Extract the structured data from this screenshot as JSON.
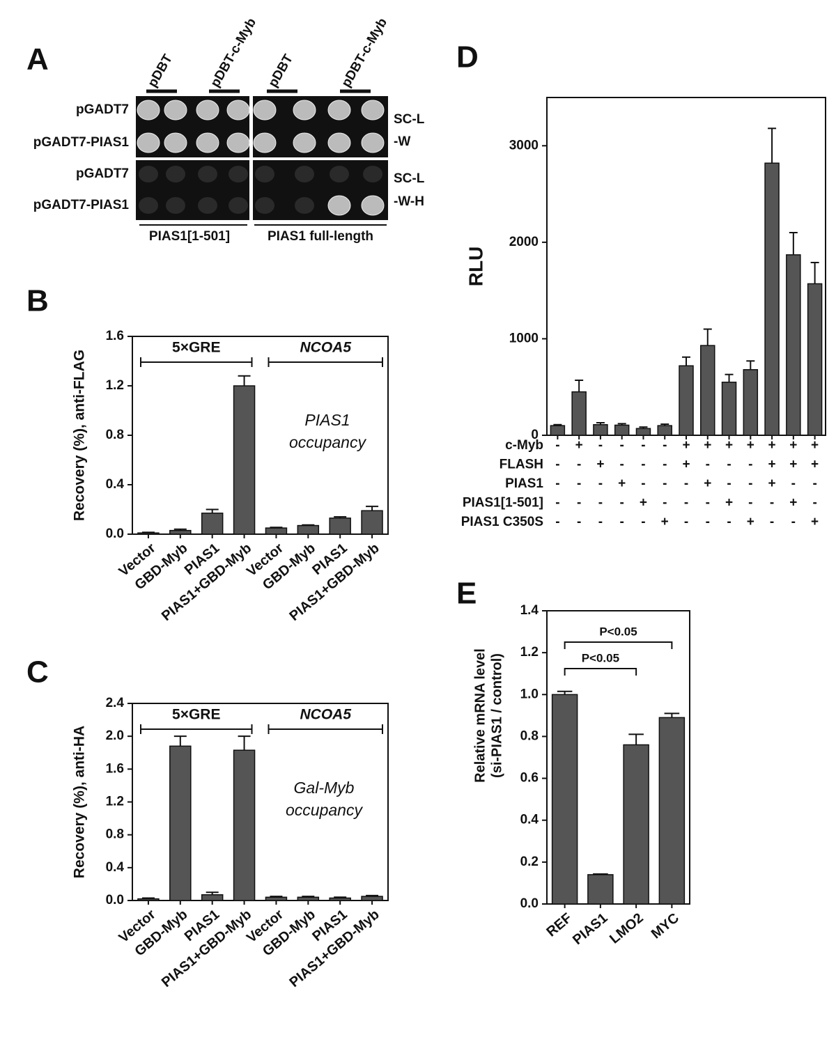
{
  "panel_a": {
    "label": "A",
    "columns": [
      "pDBT",
      "pDBT-c-Myb",
      "pDBT",
      "pDBT-c-Myb"
    ],
    "rows": [
      "pGADT7",
      "pGADT7-PIAS1",
      "pGADT7",
      "pGADT7-PIAS1"
    ],
    "media": [
      [
        "SC-L",
        "-W"
      ],
      [
        "SC-L",
        "-W-H"
      ]
    ],
    "constructs": [
      "PIAS1[1-501]",
      "PIAS1 full-length"
    ]
  },
  "chart_data": [
    {
      "type": "bar",
      "panel_label": "B",
      "y_label": "Recovery (%), anti-FLAG",
      "groups": [
        "5×GRE",
        "NCOA5"
      ],
      "note_lines": [
        "PIAS1",
        "occupancy"
      ],
      "categories": [
        "Vector",
        "GBD-Myb",
        "PIAS1",
        "PIAS1+GBD-Myb",
        "Vector",
        "GBD-Myb",
        "PIAS1",
        "PIAS1+GBD-Myb"
      ],
      "values": [
        0.01,
        0.03,
        0.17,
        1.2,
        0.05,
        0.07,
        0.13,
        0.19
      ],
      "errors": [
        0.005,
        0.01,
        0.03,
        0.08,
        0.005,
        0.005,
        0.01,
        0.035
      ],
      "color": "#555555",
      "ylim": [
        0,
        1.6
      ],
      "yticks": [
        {
          "value": 0,
          "label": "0.0"
        },
        0.4,
        0.8,
        1.2,
        1.6
      ]
    },
    {
      "type": "bar",
      "panel_label": "C",
      "y_label": "Recovery (%), anti-HA",
      "groups": [
        "5×GRE",
        "NCOA5"
      ],
      "note_lines": [
        "Gal-Myb",
        "occupancy"
      ],
      "categories": [
        "Vector",
        "GBD-Myb",
        "PIAS1",
        "PIAS1+GBD-Myb",
        "Vector",
        "GBD-Myb",
        "PIAS1",
        "PIAS1+GBD-Myb"
      ],
      "values": [
        0.02,
        1.88,
        0.07,
        1.83,
        0.04,
        0.04,
        0.03,
        0.05
      ],
      "errors": [
        0.01,
        0.12,
        0.03,
        0.17,
        0.01,
        0.01,
        0.01,
        0.01
      ],
      "color": "#555555",
      "ylim": [
        0,
        2.4
      ],
      "yticks": [
        {
          "value": 0,
          "label": "0.0"
        },
        0.4,
        0.8,
        1.2,
        1.6,
        {
          "value": 2,
          "label": "2.0"
        },
        2.4
      ]
    },
    {
      "type": "bar",
      "panel_label": "D",
      "y_label": "RLU",
      "values": [
        100,
        450,
        110,
        105,
        70,
        100,
        720,
        930,
        550,
        680,
        2820,
        1870,
        1570
      ],
      "errors": [
        10,
        120,
        20,
        15,
        15,
        15,
        90,
        170,
        80,
        90,
        360,
        230,
        220
      ],
      "color": "#555555",
      "conditions": [
        {
          "name": "c-Myb",
          "signs": [
            "-",
            "+",
            "-",
            "-",
            "-",
            "-",
            "+",
            "+",
            "+",
            "+",
            "+",
            "+",
            "+"
          ]
        },
        {
          "name": "FLASH",
          "signs": [
            "-",
            "-",
            "+",
            "-",
            "-",
            "-",
            "+",
            "-",
            "-",
            "-",
            "+",
            "+",
            "+"
          ]
        },
        {
          "name": "PIAS1",
          "signs": [
            "-",
            "-",
            "-",
            "+",
            "-",
            "-",
            "-",
            "+",
            "-",
            "-",
            "+",
            "-",
            "-"
          ]
        },
        {
          "name": "PIAS1[1-501]",
          "signs": [
            "-",
            "-",
            "-",
            "-",
            "+",
            "-",
            "-",
            "-",
            "+",
            "-",
            "-",
            "+",
            "-"
          ]
        },
        {
          "name": "PIAS1 C350S",
          "signs": [
            "-",
            "-",
            "-",
            "-",
            "-",
            "+",
            "-",
            "-",
            "-",
            "+",
            "-",
            "-",
            "+"
          ]
        }
      ],
      "ylim": [
        0,
        3500
      ],
      "yticks": [
        0,
        1000,
        2000,
        3000
      ]
    },
    {
      "type": "bar",
      "panel_label": "E",
      "y_label_lines": [
        "Relative mRNA level",
        "(si-PIAS1 / control)"
      ],
      "significance": [
        "P<0.05",
        "P<0.05"
      ],
      "categories": [
        "REF",
        "PIAS1",
        "LMO2",
        "MYC"
      ],
      "values": [
        1.0,
        0.14,
        0.76,
        0.89
      ],
      "errors": [
        0.015,
        0.003,
        0.05,
        0.02
      ],
      "color": "#555555",
      "ylim": [
        0,
        1.4
      ],
      "yticks": [
        {
          "value": 0,
          "label": "0.0"
        },
        0.2,
        0.4,
        0.6,
        0.8,
        {
          "value": 1,
          "label": "1.0"
        },
        1.2,
        1.4
      ]
    }
  ]
}
